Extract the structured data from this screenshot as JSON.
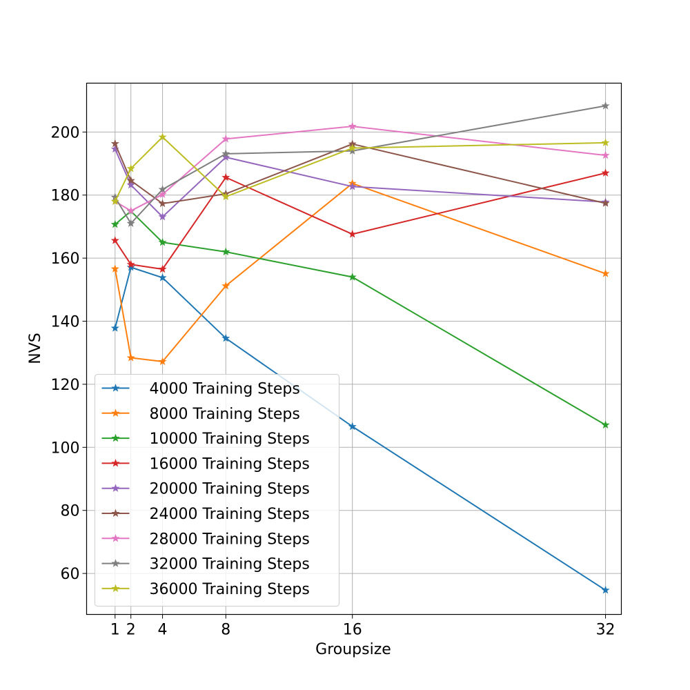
{
  "chart_data": {
    "type": "line",
    "title": "",
    "xlabel": "Groupsize",
    "ylabel": "NVS",
    "x": [
      1,
      2,
      4,
      8,
      16,
      32
    ],
    "xticks": [
      1,
      2,
      4,
      8,
      16,
      32
    ],
    "xtick_labels": [
      "1",
      "2",
      "4",
      "8",
      "16",
      "32"
    ],
    "xlim": [
      -0.8,
      33.0
    ],
    "yticks": [
      60,
      80,
      100,
      120,
      140,
      160,
      180,
      200
    ],
    "ytick_labels": [
      "60",
      "80",
      "100",
      "120",
      "140",
      "160",
      "180",
      "200"
    ],
    "ylim": [
      47.0,
      215.5
    ],
    "grid": true,
    "marker": "star",
    "legend_position": "lower-left",
    "series": [
      {
        "name": "4000 Training Steps",
        "color": "#1f77b4",
        "values": [
          137.8,
          157.1,
          153.8,
          134.6,
          106.6,
          54.7
        ]
      },
      {
        "name": "8000 Training Steps",
        "color": "#ff7f0e",
        "values": [
          156.6,
          128.4,
          127.2,
          151.2,
          183.7,
          155.1
        ]
      },
      {
        "name": "10000 Training Steps",
        "color": "#2ca02c",
        "values": [
          170.7,
          174.9,
          165.0,
          162.0,
          154.0,
          107.1
        ]
      },
      {
        "name": "16000 Training Steps",
        "color": "#d62728",
        "values": [
          165.6,
          158.0,
          156.5,
          185.6,
          167.6,
          187.0
        ]
      },
      {
        "name": "20000 Training Steps",
        "color": "#9467bd",
        "values": [
          194.6,
          183.2,
          173.1,
          192.0,
          182.7,
          177.8
        ]
      },
      {
        "name": "24000 Training Steps",
        "color": "#8c564b",
        "values": [
          196.3,
          184.6,
          177.3,
          180.4,
          196.2,
          177.4
        ]
      },
      {
        "name": "28000 Training Steps",
        "color": "#e377c2",
        "values": [
          178.0,
          175.0,
          180.2,
          197.8,
          201.8,
          192.6
        ]
      },
      {
        "name": "32000 Training Steps",
        "color": "#7f7f7f",
        "values": [
          179.3,
          171.0,
          181.8,
          193.1,
          194.0,
          208.3
        ]
      },
      {
        "name": "36000 Training Steps",
        "color": "#bcbd22",
        "values": [
          178.0,
          188.4,
          198.4,
          179.5,
          194.9,
          196.6
        ]
      }
    ]
  }
}
